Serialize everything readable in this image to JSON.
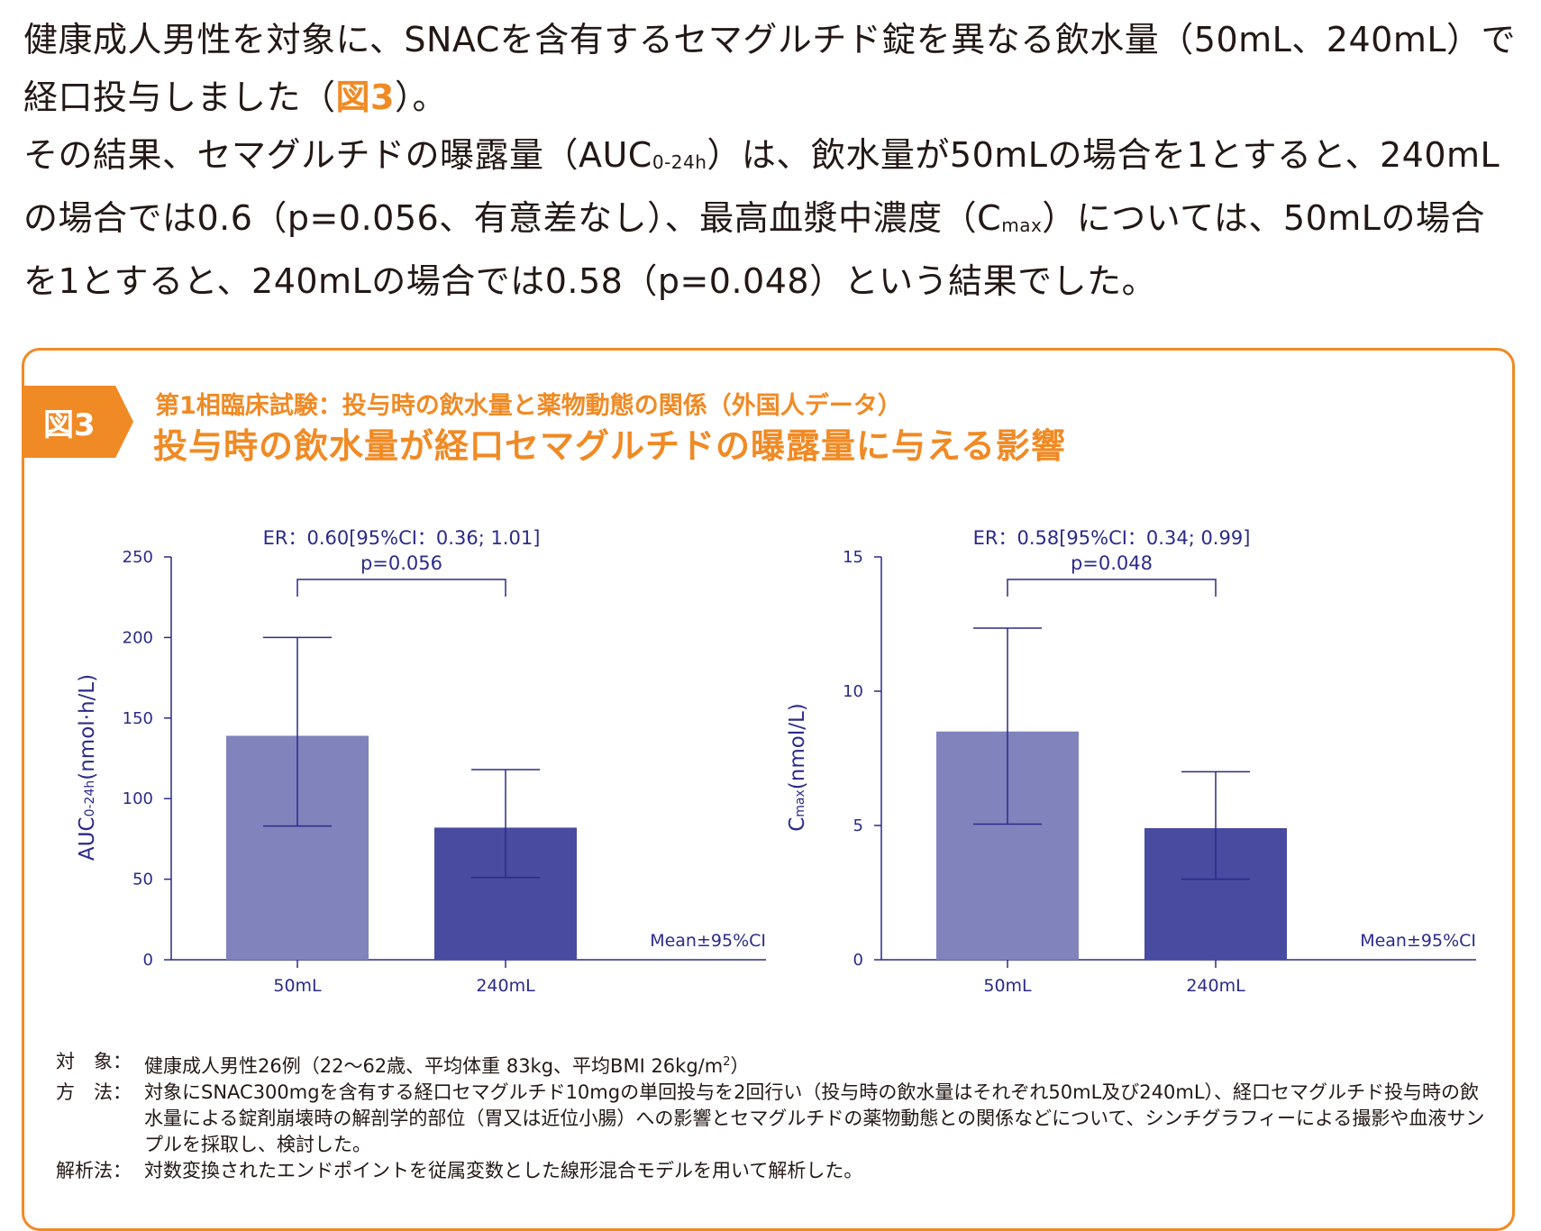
{
  "intro": {
    "p1_a": "健康成人男性を対象に、SNACを含有するセマグルチド錠を異なる飲水量（50mL、240mL）で経口投与しました（",
    "p1_ref": "図3",
    "p1_b": "）。",
    "p2_a": "その結果、セマグルチドの曝露量（AUC",
    "p2_sub1": "0-24h",
    "p2_b": "）は、飲水量が50mLの場合を1とすると、240mLの場合では0.6（p=0.056、有意差なし）、最高血漿中濃度（C",
    "p2_sub2": "max",
    "p2_c": "）については、50mLの場合を1とすると、240mLの場合では0.58（p=0.048）という結果でした。"
  },
  "figure": {
    "tab_label": "図3",
    "subtitle": "第1相臨床試験：投与時の飲水量と薬物動態の関係（外国人データ）",
    "title": "投与時の飲水量が経口セマグルチドの曝露量に与える影響"
  },
  "colors": {
    "bar_50mL": "#8183bd",
    "bar_240mL": "#484b9f",
    "axis": "#2b2a8a",
    "accent": "#f08a24"
  },
  "chart_data": [
    {
      "type": "bar",
      "categories": [
        "50mL",
        "240mL"
      ],
      "values": [
        139,
        82
      ],
      "ci_low": [
        83,
        51
      ],
      "ci_high": [
        200,
        118
      ],
      "ylabel_main": "AUC",
      "ylabel_sub": "0-24h",
      "ylabel_unit": "(nmol·h/L)",
      "ylim": [
        0,
        250
      ],
      "yticks": [
        0,
        50,
        100,
        150,
        200,
        250
      ],
      "annotation_line1": "ER：0.60[95%CI：0.36; 1.01]",
      "annotation_line2": "p=0.056",
      "legend_note": "Mean±95%CI"
    },
    {
      "type": "bar",
      "categories": [
        "50mL",
        "240mL"
      ],
      "values": [
        8.5,
        4.9
      ],
      "ci_low": [
        5.05,
        3.0
      ],
      "ci_high": [
        12.35,
        7.0
      ],
      "ylabel_main": "C",
      "ylabel_sub": "max",
      "ylabel_unit": "(nmol/L)",
      "ylim": [
        0,
        15
      ],
      "yticks": [
        0,
        5,
        10,
        15
      ],
      "annotation_line1": "ER：0.58[95%CI：0.34; 0.99]",
      "annotation_line2": "p=0.048",
      "legend_note": "Mean±95%CI"
    }
  ],
  "notes": [
    {
      "label": "対　象：",
      "text": "健康成人男性26例（22〜62歳、平均体重 83kg、平均BMI 26kg/m",
      "sup": "2",
      "tail": "）"
    },
    {
      "label": "方　法：",
      "text": "対象にSNAC300mgを含有する経口セマグルチド10mgの単回投与を2回行い（投与時の飲水量はそれぞれ50mL及び240mL）、経口セマグルチド投与時の飲水量による錠剤崩壊時の解剖学的部位（胃又は近位小腸）への影響とセマグルチドの薬物動態との関係などについて、シンチグラフィーによる撮影や血液サンプルを採取し、検討した。"
    },
    {
      "label": "解析法：",
      "text": "対数変換されたエンドポイントを従属変数とした線形混合モデルを用いて解析した。"
    }
  ]
}
